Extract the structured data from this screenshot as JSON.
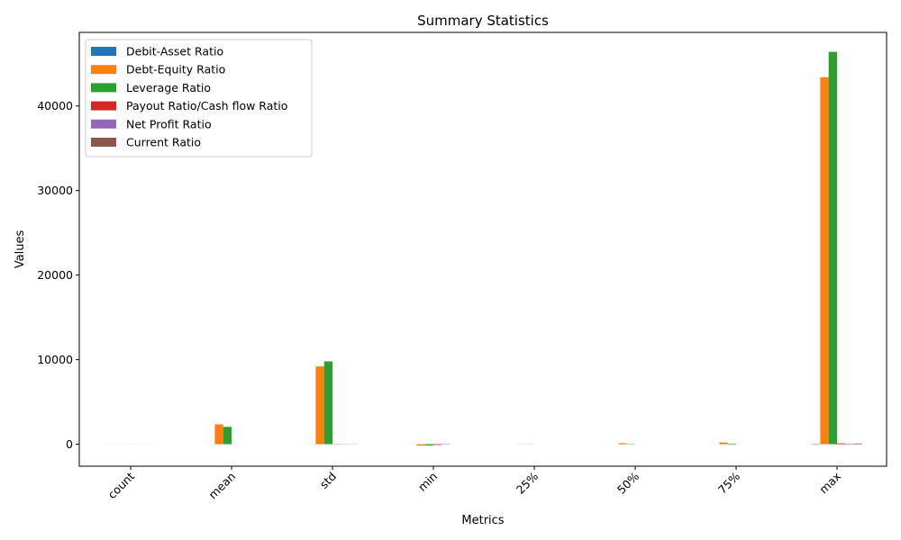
{
  "chart_data": {
    "type": "bar",
    "title": "Summary Statistics",
    "xlabel": "Metrics",
    "ylabel": "Values",
    "categories": [
      "count",
      "mean",
      "std",
      "min",
      "25%",
      "50%",
      "75%",
      "max"
    ],
    "ylim": [
      -2600,
      48700
    ],
    "yticks": [
      0,
      10000,
      20000,
      30000,
      40000
    ],
    "legend_position": "top-left",
    "grid": false,
    "series": [
      {
        "name": "Debit-Asset Ratio",
        "color": "#1f77b4",
        "values": [
          5,
          1,
          5,
          0,
          0,
          1,
          1,
          40
        ]
      },
      {
        "name": "Debt-Equity Ratio",
        "color": "#ff7f0e",
        "values": [
          5,
          2350,
          9200,
          -150,
          20,
          120,
          200,
          43400
        ]
      },
      {
        "name": "Leverage Ratio",
        "color": "#2ca02c",
        "values": [
          5,
          2050,
          9800,
          -150,
          15,
          40,
          70,
          46400
        ]
      },
      {
        "name": "Payout Ratio/Cash flow Ratio",
        "color": "#d62728",
        "values": [
          5,
          5,
          30,
          -90,
          0,
          1,
          2,
          100
        ]
      },
      {
        "name": "Net Profit Ratio",
        "color": "#9467bd",
        "values": [
          5,
          2,
          20,
          -40,
          0,
          1,
          2,
          60
        ]
      },
      {
        "name": "Current Ratio",
        "color": "#8c564b",
        "values": [
          5,
          3,
          20,
          0,
          1,
          2,
          3,
          80
        ]
      }
    ]
  }
}
